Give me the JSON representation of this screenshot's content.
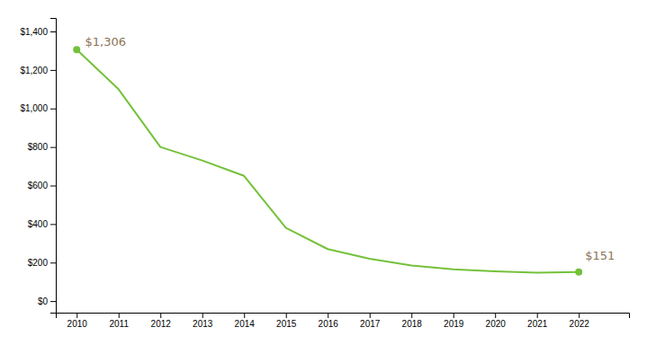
{
  "chart_data": {
    "type": "line",
    "x": [
      2010,
      2011,
      2012,
      2013,
      2014,
      2015,
      2016,
      2017,
      2018,
      2019,
      2020,
      2021,
      2022
    ],
    "values": [
      1306,
      1100,
      800,
      730,
      650,
      380,
      270,
      220,
      185,
      165,
      155,
      148,
      151
    ],
    "color": "#74c13a",
    "marker": "endpoints",
    "xlim": [
      2009.5,
      2023.2
    ],
    "xticks": [
      2010,
      2011,
      2012,
      2013,
      2014,
      2015,
      2016,
      2017,
      2018,
      2019,
      2020,
      2021,
      2022
    ],
    "ylim": [
      -60,
      1470
    ],
    "yticks": [
      {
        "value": 0,
        "label": "$0"
      },
      {
        "value": 200,
        "label": "$200"
      },
      {
        "value": 400,
        "label": "$400"
      },
      {
        "value": 600,
        "label": "$600"
      },
      {
        "value": 800,
        "label": "$800"
      },
      {
        "value": 1000,
        "label": "$1,000"
      },
      {
        "value": 1200,
        "label": "$1,200"
      },
      {
        "value": 1400,
        "label": "$1,400"
      }
    ],
    "annotations": [
      {
        "text": "$1,306",
        "x": 2010.2,
        "y": 1340,
        "color": "#8B7355"
      },
      {
        "text": "$151",
        "x": 2022.15,
        "y": 230,
        "color": "#8B7355"
      }
    ],
    "grid": false
  }
}
